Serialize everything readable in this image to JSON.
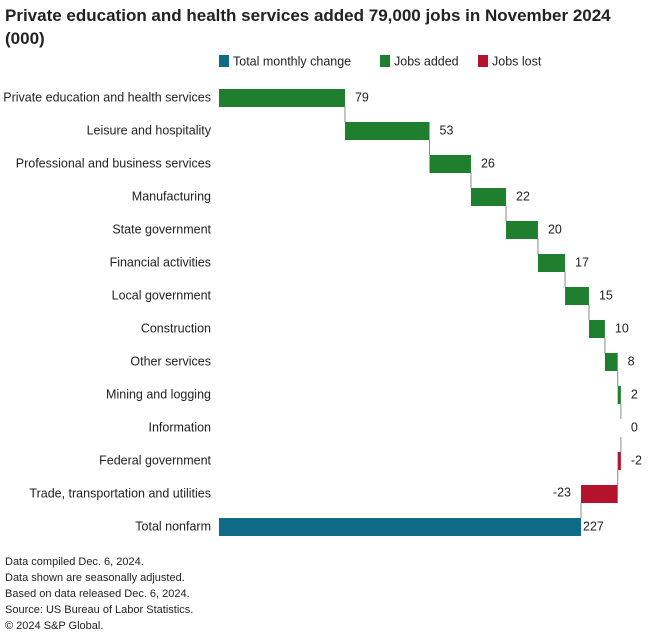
{
  "chart_data": {
    "type": "waterfall",
    "title": "Private education and health services added 79,000 jobs in November 2024 (000)",
    "legend": [
      {
        "name": "Total monthly change",
        "color": "#0f6b86"
      },
      {
        "name": "Jobs added",
        "color": "#1f7f2e"
      },
      {
        "name": "Jobs lost",
        "color": "#b5122e"
      }
    ],
    "categories": [
      "Private education and health services",
      "Leisure and hospitality",
      "Professional and business services",
      "Manufacturing",
      "State government",
      "Financial activities",
      "Local government",
      "Construction",
      "Other services",
      "Mining and logging",
      "Information",
      "Federal government",
      "Trade, transportation and utilities"
    ],
    "values": [
      79,
      53,
      26,
      22,
      20,
      17,
      15,
      10,
      8,
      2,
      0,
      -2,
      -23
    ],
    "total": {
      "name": "Total nonfarm",
      "value": 227
    },
    "notes": [
      "Data compiled Dec. 6, 2024.",
      "Data shown are seasonally adjusted.",
      "Based on data released Dec. 6, 2024.",
      "Source: US Bureau of Labor Statistics.",
      "© 2024 S&P Global."
    ]
  }
}
